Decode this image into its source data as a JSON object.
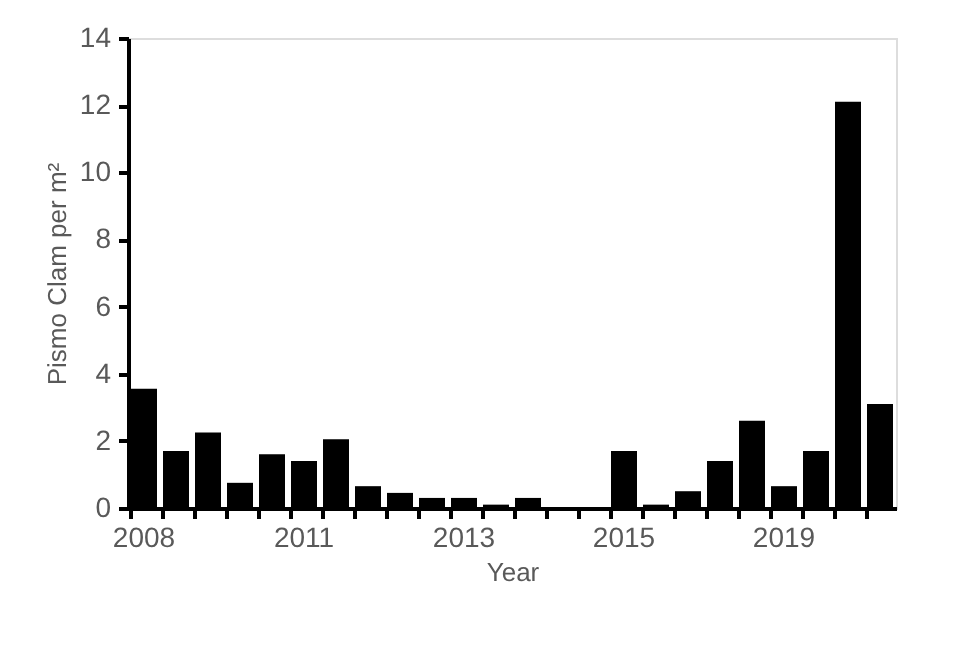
{
  "chart_data": {
    "type": "bar",
    "xlabel": "Year",
    "ylabel": "Pismo Clam per m²",
    "categories": [
      "2008",
      null,
      null,
      null,
      null,
      "2011",
      null,
      null,
      null,
      null,
      "2013",
      null,
      null,
      null,
      null,
      "2015",
      null,
      null,
      null,
      null,
      "2019",
      null,
      null,
      null
    ],
    "values": [
      3.55,
      1.7,
      2.25,
      0.75,
      1.6,
      1.4,
      2.05,
      0.65,
      0.45,
      0.3,
      0.3,
      0.1,
      0.3,
      0,
      0,
      1.7,
      0.1,
      0.5,
      1.4,
      2.6,
      0.65,
      1.7,
      12.1,
      3.1
    ],
    "color": "#000000",
    "ylim": [
      0,
      14
    ],
    "yticks": [
      0,
      2,
      4,
      6,
      8,
      10,
      12,
      14
    ],
    "grid": false
  }
}
